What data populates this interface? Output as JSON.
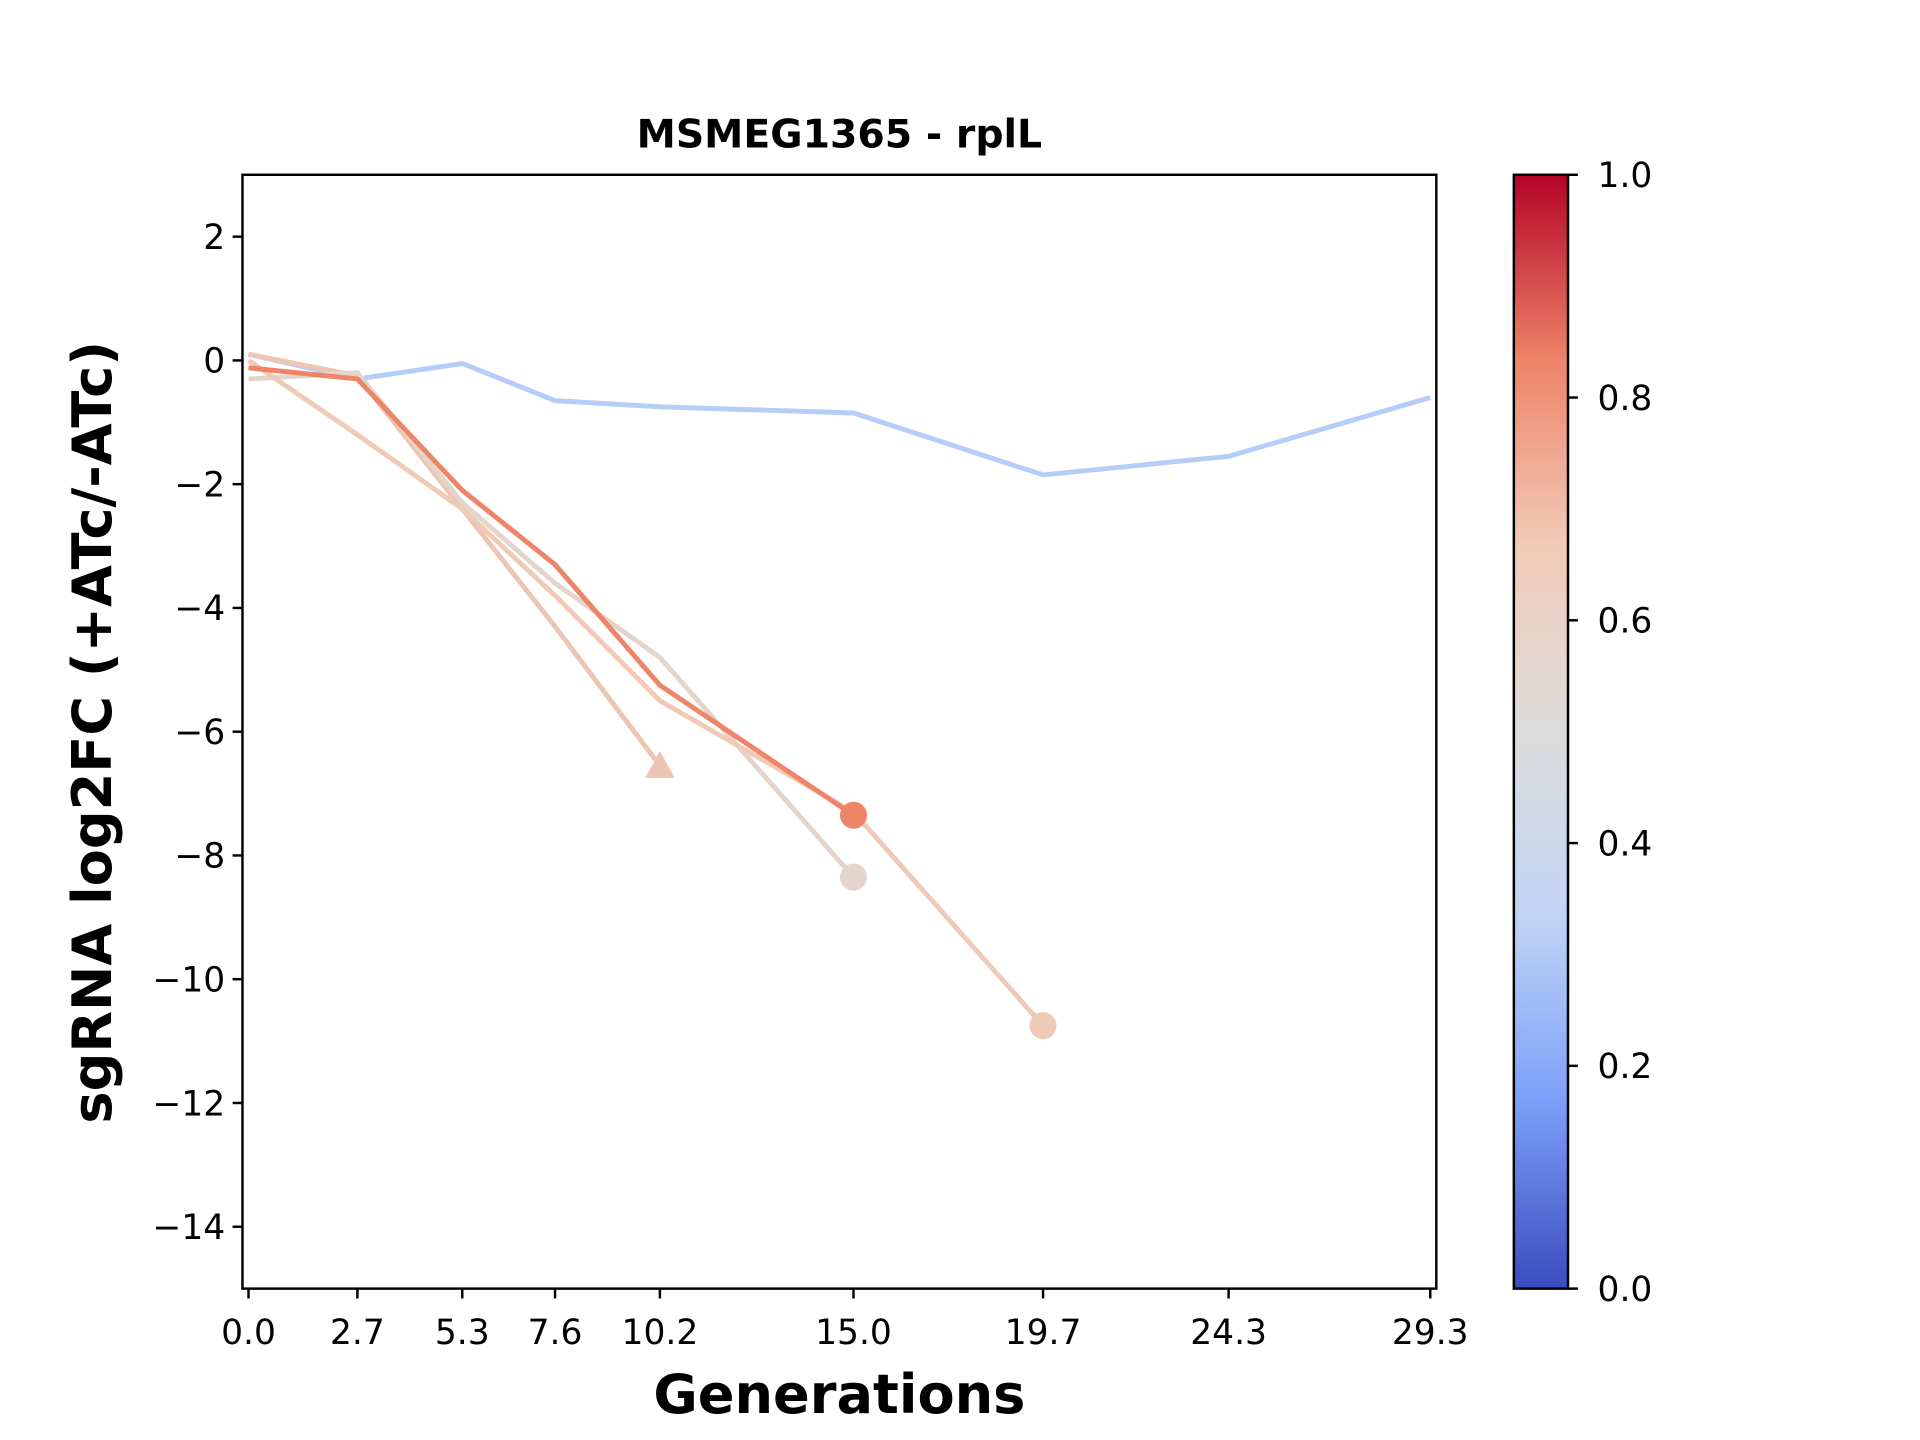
{
  "chart_data": {
    "type": "line",
    "title": "MSMEG1365 - rplL",
    "x_label": "Generations",
    "y_label": "sgRNA log2FC (+ATc/-ATc)",
    "x": [
      0,
      2.7,
      5.3,
      7.6,
      10.2,
      15.0,
      19.7,
      24.3,
      29.3
    ],
    "series": [
      {
        "color": "#b5cdf8",
        "marker": "none",
        "values": [
          0.1,
          -0.3,
          -0.05,
          -0.65,
          -0.75,
          -0.85,
          -1.85,
          -1.55,
          -0.6
        ]
      },
      {
        "color": "#ecc6b3",
        "marker": "triangle",
        "values": [
          0.1,
          -0.25,
          -2.4,
          -4.3,
          -6.55,
          null,
          null,
          null,
          null
        ]
      },
      {
        "color": "#e4d5cc",
        "marker": "circle",
        "values": [
          -0.3,
          -0.2,
          -2.3,
          -3.6,
          -4.8,
          -8.35,
          null,
          null,
          null
        ]
      },
      {
        "color": "#efcab7",
        "marker": "circle",
        "values": [
          0.0,
          -1.2,
          -2.4,
          -3.8,
          -5.5,
          -7.3,
          -10.75,
          null,
          null
        ]
      },
      {
        "color": "#ee8468",
        "marker": "circle",
        "values": [
          -0.12,
          -0.3,
          -2.1,
          -3.3,
          -5.25,
          -7.35,
          null,
          null,
          null
        ]
      }
    ],
    "xlim": [
      -0.15,
      29.45
    ],
    "ylim": [
      -15,
      3
    ],
    "xticks": [
      {
        "value": 0,
        "label": "0.0"
      },
      2.7,
      5.3,
      7.6,
      10.2,
      {
        "value": 15,
        "label": "15.0"
      },
      19.7,
      24.3,
      29.3
    ],
    "yticks": [
      {
        "value": 2,
        "label": "2"
      },
      0,
      {
        "value": -2,
        "label": "−2"
      },
      {
        "value": -4,
        "label": "−4"
      },
      {
        "value": -6,
        "label": "−6"
      },
      {
        "value": -8,
        "label": "−8"
      },
      {
        "value": -10,
        "label": "−10"
      },
      {
        "value": -12,
        "label": "−12"
      },
      {
        "value": -14,
        "label": "−14"
      }
    ],
    "colorbar": {
      "lim": [
        0,
        1
      ],
      "colors": [
        "#3b4cc0",
        "#7b9ff9",
        "#c0d4f5",
        "#dddcdc",
        "#f2cbb7",
        "#ee8468",
        "#b40426"
      ],
      "ticks": [
        {
          "value": 0,
          "label": "0.0"
        },
        0.2,
        0.4,
        0.6,
        0.8,
        {
          "value": 1,
          "label": "1.0"
        }
      ]
    }
  }
}
